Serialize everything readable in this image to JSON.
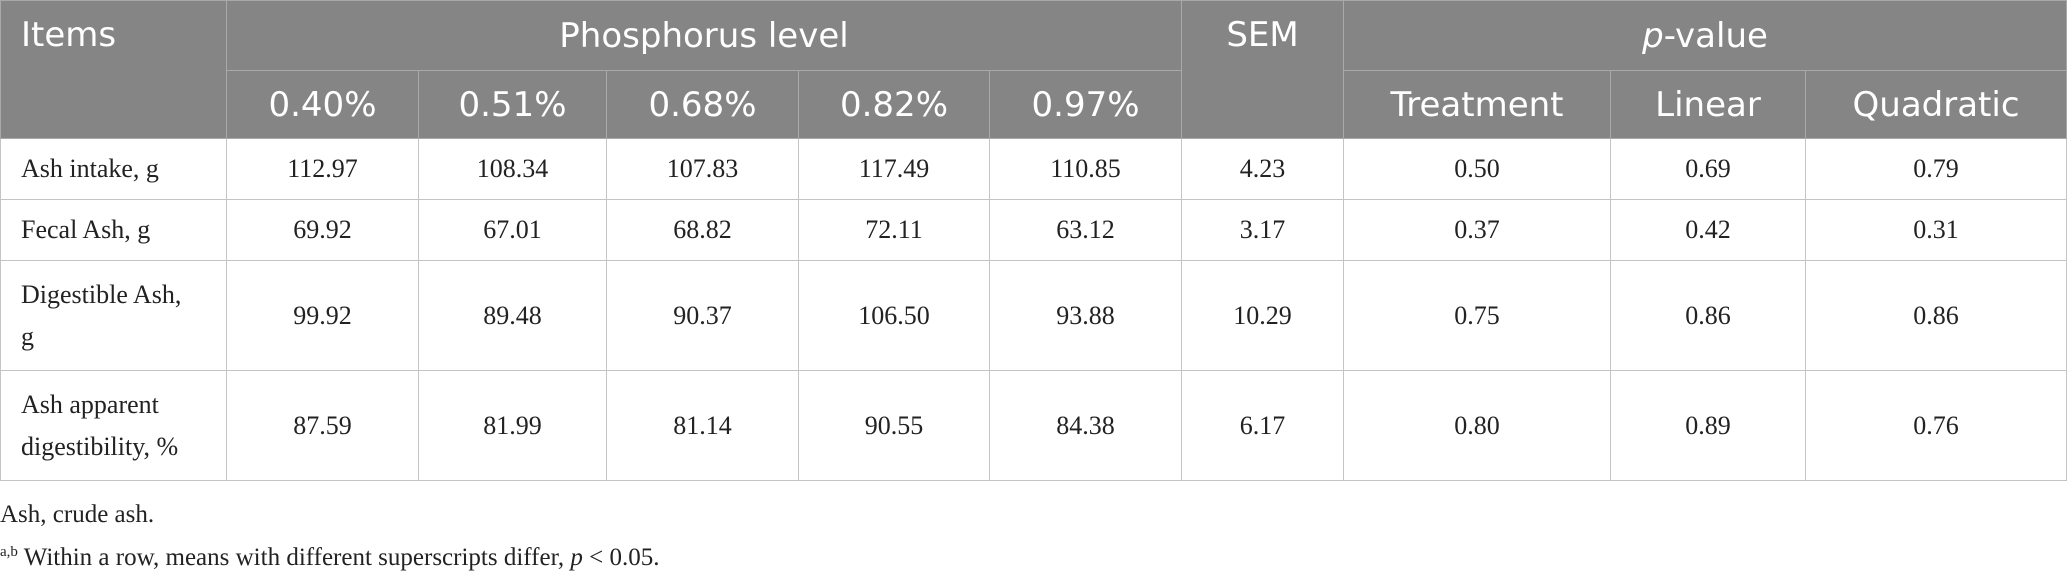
{
  "header": {
    "items": "Items",
    "phosphorus_level": "Phosphorus level",
    "sem": "SEM",
    "pvalue_p": "p",
    "pvalue_rest": "-value",
    "levels": [
      "0.40%",
      "0.51%",
      "0.68%",
      "0.82%",
      "0.97%"
    ],
    "treatment": "Treatment",
    "linear": "Linear",
    "quadratic": "Quadratic"
  },
  "rows": [
    {
      "label": "Ash intake, g",
      "values": [
        "112.97",
        "108.34",
        "107.83",
        "117.49",
        "110.85"
      ],
      "sem": "4.23",
      "treatment": "0.50",
      "linear": "0.69",
      "quadratic": "0.79"
    },
    {
      "label": "Fecal Ash, g",
      "values": [
        "69.92",
        "67.01",
        "68.82",
        "72.11",
        "63.12"
      ],
      "sem": "3.17",
      "treatment": "0.37",
      "linear": "0.42",
      "quadratic": "0.31"
    },
    {
      "label_line1": "Digestible Ash,",
      "label_line2": "g",
      "values": [
        "99.92",
        "89.48",
        "90.37",
        "106.50",
        "93.88"
      ],
      "sem": "10.29",
      "treatment": "0.75",
      "linear": "0.86",
      "quadratic": "0.86"
    },
    {
      "label_line1": "Ash apparent",
      "label_line2": "digestibility, %",
      "values": [
        "87.59",
        "81.99",
        "81.14",
        "90.55",
        "84.38"
      ],
      "sem": "6.17",
      "treatment": "0.80",
      "linear": "0.89",
      "quadratic": "0.76"
    }
  ],
  "notes": {
    "line1": "Ash, crude ash.",
    "sup": "a,b",
    "line2_text": " Within a row, means with different superscripts differ, ",
    "line2_p": "p",
    "line2_end": " < 0.05."
  }
}
